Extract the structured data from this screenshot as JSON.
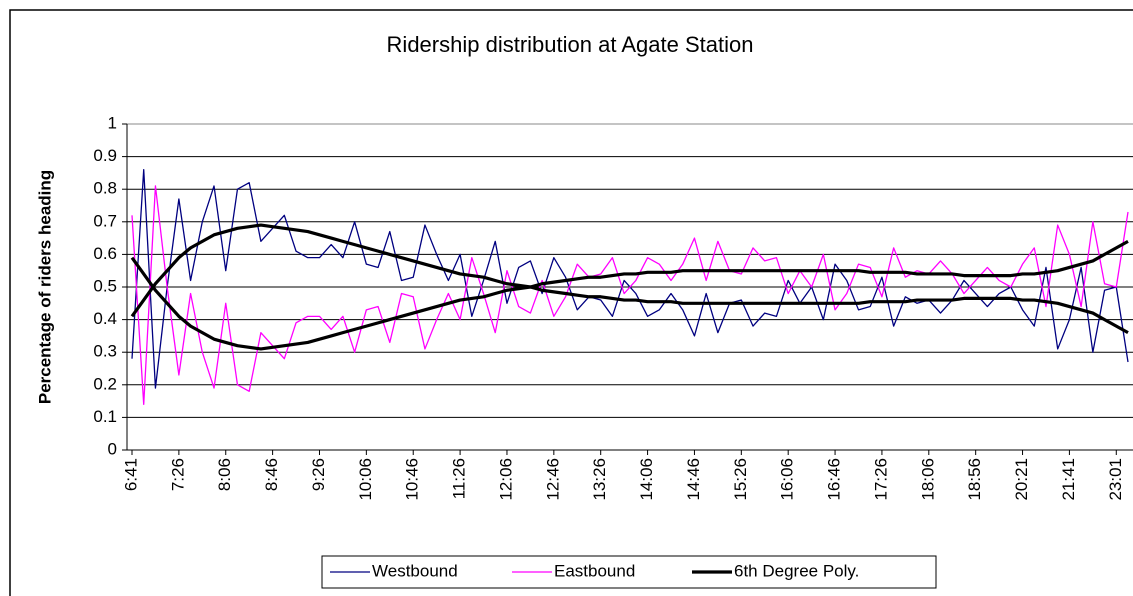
{
  "chart_data": {
    "type": "line",
    "title": "Ridership distribution at Agate Station",
    "ylabel": "Percentage of riders heading",
    "categories": [
      "6:41",
      null,
      null,
      null,
      "7:26",
      null,
      null,
      null,
      "8:06",
      null,
      null,
      null,
      "8:46",
      null,
      null,
      null,
      "9:26",
      null,
      null,
      null,
      "10:06",
      null,
      null,
      null,
      "10:46",
      null,
      null,
      null,
      "11:26",
      null,
      null,
      null,
      "12:06",
      null,
      null,
      null,
      "12:46",
      null,
      null,
      null,
      "13:26",
      null,
      null,
      null,
      "14:06",
      null,
      null,
      null,
      "14:46",
      null,
      null,
      null,
      "15:26",
      null,
      null,
      null,
      "16:06",
      null,
      null,
      null,
      "16:46",
      null,
      null,
      null,
      "17:26",
      null,
      null,
      null,
      "18:06",
      null,
      null,
      null,
      "18:56",
      null,
      null,
      null,
      "20:21",
      null,
      null,
      null,
      "21:41",
      null,
      null,
      null,
      "23:01",
      null
    ],
    "series": [
      {
        "name": "Westbound",
        "color": "#000080",
        "values": [
          0.28,
          0.86,
          0.19,
          0.5,
          0.77,
          0.52,
          0.7,
          0.81,
          0.55,
          0.8,
          0.82,
          0.64,
          0.68,
          0.72,
          0.61,
          0.59,
          0.59,
          0.63,
          0.59,
          0.7,
          0.57,
          0.56,
          0.67,
          0.52,
          0.53,
          0.69,
          0.6,
          0.52,
          0.6,
          0.41,
          0.52,
          0.64,
          0.45,
          0.56,
          0.58,
          0.48,
          0.59,
          0.53,
          0.43,
          0.47,
          0.46,
          0.41,
          0.52,
          0.48,
          0.41,
          0.43,
          0.48,
          0.43,
          0.35,
          0.48,
          0.36,
          0.45,
          0.46,
          0.38,
          0.42,
          0.41,
          0.52,
          0.45,
          0.5,
          0.4,
          0.57,
          0.52,
          0.43,
          0.44,
          0.53,
          0.38,
          0.47,
          0.45,
          0.46,
          0.42,
          0.46,
          0.52,
          0.48,
          0.44,
          0.48,
          0.5,
          0.43,
          0.38,
          0.56,
          0.31,
          0.4,
          0.56,
          0.3,
          0.49,
          0.5,
          0.27
        ],
        "trend": [
          0.41,
          0.46,
          0.51,
          0.55,
          0.59,
          0.62,
          0.64,
          0.66,
          0.67,
          0.68,
          0.685,
          0.69,
          0.685,
          0.68,
          0.675,
          0.67,
          0.66,
          0.65,
          0.64,
          0.63,
          0.62,
          0.61,
          0.6,
          0.59,
          0.58,
          0.57,
          0.56,
          0.55,
          0.54,
          0.535,
          0.53,
          0.52,
          0.51,
          0.505,
          0.5,
          0.49,
          0.485,
          0.48,
          0.475,
          0.47,
          0.47,
          0.465,
          0.46,
          0.46,
          0.455,
          0.455,
          0.455,
          0.45,
          0.45,
          0.45,
          0.45,
          0.45,
          0.45,
          0.45,
          0.45,
          0.45,
          0.45,
          0.45,
          0.45,
          0.45,
          0.45,
          0.45,
          0.45,
          0.455,
          0.455,
          0.455,
          0.455,
          0.46,
          0.46,
          0.46,
          0.46,
          0.465,
          0.465,
          0.465,
          0.465,
          0.465,
          0.46,
          0.46,
          0.455,
          0.45,
          0.44,
          0.43,
          0.42,
          0.4,
          0.38,
          0.36
        ]
      },
      {
        "name": "Eastbound",
        "color": "#ff00ff",
        "values": [
          0.72,
          0.14,
          0.81,
          0.5,
          0.23,
          0.48,
          0.3,
          0.19,
          0.45,
          0.2,
          0.18,
          0.36,
          0.32,
          0.28,
          0.39,
          0.41,
          0.41,
          0.37,
          0.41,
          0.3,
          0.43,
          0.44,
          0.33,
          0.48,
          0.47,
          0.31,
          0.4,
          0.48,
          0.4,
          0.59,
          0.48,
          0.36,
          0.55,
          0.44,
          0.42,
          0.52,
          0.41,
          0.47,
          0.57,
          0.53,
          0.54,
          0.59,
          0.48,
          0.52,
          0.59,
          0.57,
          0.52,
          0.57,
          0.65,
          0.52,
          0.64,
          0.55,
          0.54,
          0.62,
          0.58,
          0.59,
          0.48,
          0.55,
          0.5,
          0.6,
          0.43,
          0.48,
          0.57,
          0.56,
          0.47,
          0.62,
          0.53,
          0.55,
          0.54,
          0.58,
          0.54,
          0.48,
          0.52,
          0.56,
          0.52,
          0.5,
          0.57,
          0.62,
          0.44,
          0.69,
          0.6,
          0.44,
          0.7,
          0.51,
          0.5,
          0.73
        ],
        "trend": [
          0.59,
          0.54,
          0.49,
          0.45,
          0.41,
          0.38,
          0.36,
          0.34,
          0.33,
          0.32,
          0.315,
          0.31,
          0.315,
          0.32,
          0.325,
          0.33,
          0.34,
          0.35,
          0.36,
          0.37,
          0.38,
          0.39,
          0.4,
          0.41,
          0.42,
          0.43,
          0.44,
          0.45,
          0.46,
          0.465,
          0.47,
          0.48,
          0.49,
          0.495,
          0.5,
          0.51,
          0.515,
          0.52,
          0.525,
          0.53,
          0.53,
          0.535,
          0.54,
          0.54,
          0.545,
          0.545,
          0.545,
          0.55,
          0.55,
          0.55,
          0.55,
          0.55,
          0.55,
          0.55,
          0.55,
          0.55,
          0.55,
          0.55,
          0.55,
          0.55,
          0.55,
          0.55,
          0.55,
          0.545,
          0.545,
          0.545,
          0.545,
          0.54,
          0.54,
          0.54,
          0.54,
          0.535,
          0.535,
          0.535,
          0.535,
          0.535,
          0.54,
          0.54,
          0.545,
          0.55,
          0.56,
          0.57,
          0.58,
          0.6,
          0.62,
          0.64
        ]
      }
    ],
    "trend_name": "6th Degree Poly.",
    "trend_color": "#000000",
    "ylim": [
      0,
      1
    ],
    "yticks": [
      0,
      0.1,
      0.2,
      0.3,
      0.4,
      0.5,
      0.6,
      0.7,
      0.8,
      0.9,
      1
    ],
    "grid": true
  }
}
